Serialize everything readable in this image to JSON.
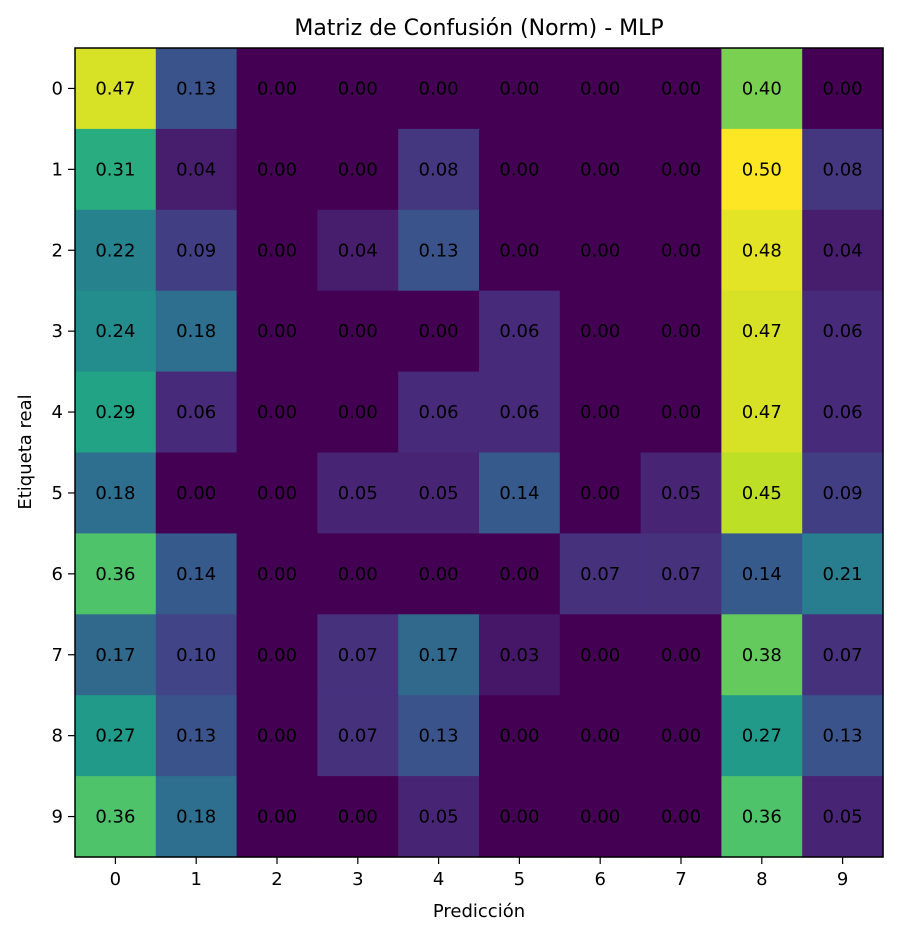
{
  "chart_data": {
    "type": "heatmap",
    "title": "Matriz de Confusión (Norm) - MLP",
    "xlabel": "Predicción",
    "ylabel": "Etiqueta real",
    "x_ticks": [
      "0",
      "1",
      "2",
      "3",
      "4",
      "5",
      "6",
      "7",
      "8",
      "9"
    ],
    "y_ticks": [
      "0",
      "1",
      "2",
      "3",
      "4",
      "5",
      "6",
      "7",
      "8",
      "9"
    ],
    "colormap": "viridis",
    "value_range": [
      0.0,
      0.5
    ],
    "matrix": [
      [
        0.47,
        0.13,
        0.0,
        0.0,
        0.0,
        0.0,
        0.0,
        0.0,
        0.4,
        0.0
      ],
      [
        0.31,
        0.04,
        0.0,
        0.0,
        0.08,
        0.0,
        0.0,
        0.0,
        0.5,
        0.08
      ],
      [
        0.22,
        0.09,
        0.0,
        0.04,
        0.13,
        0.0,
        0.0,
        0.0,
        0.48,
        0.04
      ],
      [
        0.24,
        0.18,
        0.0,
        0.0,
        0.0,
        0.06,
        0.0,
        0.0,
        0.47,
        0.06
      ],
      [
        0.29,
        0.06,
        0.0,
        0.0,
        0.06,
        0.06,
        0.0,
        0.0,
        0.47,
        0.06
      ],
      [
        0.18,
        0.0,
        0.0,
        0.05,
        0.05,
        0.14,
        0.0,
        0.05,
        0.45,
        0.09
      ],
      [
        0.36,
        0.14,
        0.0,
        0.0,
        0.0,
        0.0,
        0.07,
        0.07,
        0.14,
        0.21
      ],
      [
        0.17,
        0.1,
        0.0,
        0.07,
        0.17,
        0.03,
        0.0,
        0.0,
        0.38,
        0.07
      ],
      [
        0.27,
        0.13,
        0.0,
        0.07,
        0.13,
        0.0,
        0.0,
        0.0,
        0.27,
        0.13
      ],
      [
        0.36,
        0.18,
        0.0,
        0.0,
        0.05,
        0.0,
        0.0,
        0.0,
        0.36,
        0.05
      ]
    ]
  }
}
